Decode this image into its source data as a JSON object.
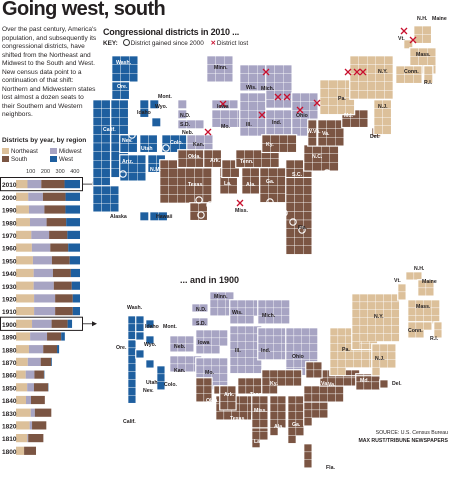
{
  "title": "Going west, south",
  "intro": "Over the past century, America's population, and subsequently its congressional districts, have shifted from the Northeast and Midwest to the South and West. New census data point to a continuation of that shift: Northern and Midwestern states lost almost a dozen seats to their Southern and Western neighbors.",
  "colors": {
    "northeast": "#dcc09a",
    "midwest": "#a7a4c3",
    "south": "#7b5543",
    "west": "#1e5f9f"
  },
  "left_chart": {
    "heading": "Districts by year, by region",
    "legend": [
      "Northeast",
      "Midwest",
      "South",
      "West"
    ],
    "ticks": [
      "100",
      "200",
      "300",
      "400"
    ]
  },
  "map2010": {
    "heading": "Congressional districts in 2010 ...",
    "key_label": "KEY:",
    "gained_label": "District gained since 2000",
    "lost_label": "District lost"
  },
  "map1900": {
    "heading": "... and in 1900"
  },
  "chart_data": {
    "type": "bar",
    "title": "Districts by year, by region",
    "orientation": "horizontal",
    "stacked": true,
    "xlim": [
      0,
      435
    ],
    "categories": [
      "2010",
      "2000",
      "1990",
      "1980",
      "1970",
      "1960",
      "1950",
      "1940",
      "1930",
      "1920",
      "1910",
      "1900",
      "1890",
      "1880",
      "1870",
      "1860",
      "1850",
      "1840",
      "1830",
      "1820",
      "1810",
      "1800"
    ],
    "series": [
      {
        "name": "Northeast",
        "values": [
          78,
          83,
          88,
          95,
          104,
          108,
          115,
          120,
          120,
          123,
          123,
          109,
          96,
          88,
          80,
          66,
          76,
          68,
          100,
          93,
          77,
          55
        ]
      },
      {
        "name": "Midwest",
        "values": [
          94,
          100,
          105,
          113,
          121,
          125,
          129,
          131,
          137,
          143,
          143,
          133,
          115,
          97,
          88,
          59,
          46,
          34,
          28,
          16,
          6,
          0
        ]
      },
      {
        "name": "South",
        "values": [
          158,
          154,
          143,
          133,
          124,
          122,
          121,
          122,
          122,
          120,
          120,
          109,
          96,
          94,
          71,
          65,
          97,
          94,
          112,
          97,
          103,
          81
        ]
      },
      {
        "name": "West",
        "values": [
          105,
          98,
          99,
          94,
          86,
          80,
          70,
          62,
          56,
          49,
          49,
          30,
          25,
          14,
          5,
          3,
          2,
          0,
          0,
          0,
          0,
          0
        ]
      }
    ],
    "highlighted": [
      "2010",
      "1900"
    ],
    "map_2010_states": [
      {
        "state": "Wash.",
        "region": "West",
        "districts": 10,
        "gained": 1
      },
      {
        "state": "Ore.",
        "region": "West",
        "districts": 5
      },
      {
        "state": "Calif.",
        "region": "West",
        "districts": 53
      },
      {
        "state": "Idaho",
        "region": "West",
        "districts": 2
      },
      {
        "state": "Nev.",
        "region": "West",
        "districts": 4,
        "gained": 1
      },
      {
        "state": "Utah",
        "region": "West",
        "districts": 4,
        "gained": 1
      },
      {
        "state": "Ariz.",
        "region": "West",
        "districts": 9,
        "gained": 1
      },
      {
        "state": "Mont.",
        "region": "West",
        "districts": 1
      },
      {
        "state": "Wyo.",
        "region": "West",
        "districts": 1
      },
      {
        "state": "Colo.",
        "region": "West",
        "districts": 7
      },
      {
        "state": "N.M.",
        "region": "West",
        "districts": 3
      },
      {
        "state": "Alaska",
        "region": "West",
        "districts": 1
      },
      {
        "state": "Hawaii",
        "region": "West",
        "districts": 2
      },
      {
        "state": "N.D.",
        "region": "Midwest",
        "districts": 1
      },
      {
        "state": "S.D.",
        "region": "Midwest",
        "districts": 1
      },
      {
        "state": "Neb.",
        "region": "Midwest",
        "districts": 3
      },
      {
        "state": "Kan.",
        "region": "Midwest",
        "districts": 4
      },
      {
        "state": "Minn.",
        "region": "Midwest",
        "districts": 8
      },
      {
        "state": "Iowa",
        "region": "Midwest",
        "districts": 4,
        "lost": 1
      },
      {
        "state": "Mo.",
        "region": "Midwest",
        "districts": 8,
        "lost": 1
      },
      {
        "state": "Wis.",
        "region": "Midwest",
        "districts": 8
      },
      {
        "state": "Ill.",
        "region": "Midwest",
        "districts": 18,
        "lost": 1
      },
      {
        "state": "Mich.",
        "region": "Midwest",
        "districts": 14,
        "lost": 1
      },
      {
        "state": "Ind.",
        "region": "Midwest",
        "districts": 9
      },
      {
        "state": "Ohio",
        "region": "Midwest",
        "districts": 16,
        "lost": 2
      },
      {
        "state": "Texas",
        "region": "South",
        "districts": 36,
        "gained": 4
      },
      {
        "state": "Okla.",
        "region": "South",
        "districts": 5
      },
      {
        "state": "Ark.",
        "region": "South",
        "districts": 4
      },
      {
        "state": "La.",
        "region": "South",
        "districts": 6,
        "lost": 1
      },
      {
        "state": "Miss.",
        "region": "South",
        "districts": 4
      },
      {
        "state": "Tenn.",
        "region": "South",
        "districts": 9
      },
      {
        "state": "Ky.",
        "region": "South",
        "districts": 6
      },
      {
        "state": "Ala.",
        "region": "South",
        "districts": 7
      },
      {
        "state": "Ga.",
        "region": "South",
        "districts": 14,
        "gained": 1
      },
      {
        "state": "Fla.",
        "region": "South",
        "districts": 27,
        "gained": 2
      },
      {
        "state": "S.C.",
        "region": "South",
        "districts": 7,
        "gained": 1
      },
      {
        "state": "N.C.",
        "region": "South",
        "districts": 13
      },
      {
        "state": "Va.",
        "region": "South",
        "districts": 11
      },
      {
        "state": "W.Va.",
        "region": "South",
        "districts": 3
      },
      {
        "state": "Md.",
        "region": "South",
        "districts": 8
      },
      {
        "state": "Del.",
        "region": "South",
        "districts": 1
      },
      {
        "state": "Pa.",
        "region": "Northeast",
        "districts": 18,
        "lost": 1
      },
      {
        "state": "N.Y.",
        "region": "Northeast",
        "districts": 27,
        "lost": 2
      },
      {
        "state": "N.J.",
        "region": "Northeast",
        "districts": 12,
        "lost": 1
      },
      {
        "state": "Vt.",
        "region": "Northeast",
        "districts": 1
      },
      {
        "state": "N.H.",
        "region": "Northeast",
        "districts": 2
      },
      {
        "state": "Maine",
        "region": "Northeast",
        "districts": 2
      },
      {
        "state": "Mass.",
        "region": "Northeast",
        "districts": 9,
        "lost": 1
      },
      {
        "state": "Conn.",
        "region": "Northeast",
        "districts": 5
      },
      {
        "state": "R.I.",
        "region": "Northeast",
        "districts": 2
      }
    ],
    "map_1900_states": [
      {
        "state": "Wash.",
        "region": "West",
        "districts": 3
      },
      {
        "state": "Ore.",
        "region": "West",
        "districts": 2
      },
      {
        "state": "Calif.",
        "region": "West",
        "districts": 8
      },
      {
        "state": "Idaho",
        "region": "West",
        "districts": 1
      },
      {
        "state": "Mont.",
        "region": "West",
        "districts": 1
      },
      {
        "state": "Wyo.",
        "region": "West",
        "districts": 1
      },
      {
        "state": "Nev.",
        "region": "West",
        "districts": 1
      },
      {
        "state": "Utah",
        "region": "West",
        "districts": 1
      },
      {
        "state": "Colo.",
        "region": "West",
        "districts": 3
      },
      {
        "state": "N.D.",
        "region": "Midwest",
        "districts": 2
      },
      {
        "state": "S.D.",
        "region": "Midwest",
        "districts": 2
      },
      {
        "state": "Neb.",
        "region": "Midwest",
        "districts": 6
      },
      {
        "state": "Kan.",
        "region": "Midwest",
        "districts": 8
      },
      {
        "state": "Minn.",
        "region": "Midwest",
        "districts": 9
      },
      {
        "state": "Iowa",
        "region": "Midwest",
        "districts": 11
      },
      {
        "state": "Mo.",
        "region": "Midwest",
        "districts": 16
      },
      {
        "state": "Wis.",
        "region": "Midwest",
        "districts": 11
      },
      {
        "state": "Ill.",
        "region": "Midwest",
        "districts": 25
      },
      {
        "state": "Mich.",
        "region": "Midwest",
        "districts": 12
      },
      {
        "state": "Ind.",
        "region": "Midwest",
        "districts": 13
      },
      {
        "state": "Ohio",
        "region": "Midwest",
        "districts": 21
      },
      {
        "state": "Texas",
        "region": "South",
        "districts": 16
      },
      {
        "state": "Okla.",
        "region": "South",
        "districts": 5
      },
      {
        "state": "Ark.",
        "region": "South",
        "districts": 7
      },
      {
        "state": "La.",
        "region": "South",
        "districts": 7
      },
      {
        "state": "Miss.",
        "region": "South",
        "districts": 8
      },
      {
        "state": "Tenn.",
        "region": "South",
        "districts": 10
      },
      {
        "state": "Ky.",
        "region": "South",
        "districts": 11
      },
      {
        "state": "Ala.",
        "region": "South",
        "districts": 9
      },
      {
        "state": "Ga.",
        "region": "South",
        "districts": 11
      },
      {
        "state": "Fla.",
        "region": "South",
        "districts": 3
      },
      {
        "state": "S.C.",
        "region": "South",
        "districts": 7
      },
      {
        "state": "N.C.",
        "region": "South",
        "districts": 10
      },
      {
        "state": "Va.",
        "region": "South",
        "districts": 10
      },
      {
        "state": "W.Va.",
        "region": "South",
        "districts": 5
      },
      {
        "state": "Md.",
        "region": "South",
        "districts": 6
      },
      {
        "state": "Del.",
        "region": "South",
        "districts": 1
      },
      {
        "state": "Pa.",
        "region": "Northeast",
        "districts": 32
      },
      {
        "state": "N.Y.",
        "region": "Northeast",
        "districts": 37
      },
      {
        "state": "N.J.",
        "region": "Northeast",
        "districts": 10
      },
      {
        "state": "Vt.",
        "region": "Northeast",
        "districts": 2
      },
      {
        "state": "N.H.",
        "region": "Northeast",
        "districts": 2
      },
      {
        "state": "Maine",
        "region": "Northeast",
        "districts": 4
      },
      {
        "state": "Mass.",
        "region": "Northeast",
        "districts": 14
      },
      {
        "state": "Conn.",
        "region": "Northeast",
        "districts": 5
      },
      {
        "state": "R.I.",
        "region": "Northeast",
        "districts": 2
      }
    ]
  },
  "source": "SOURCE: U.S. Census Bureau",
  "credit": "MAX RUST/TRIBUNE NEWSPAPERS"
}
